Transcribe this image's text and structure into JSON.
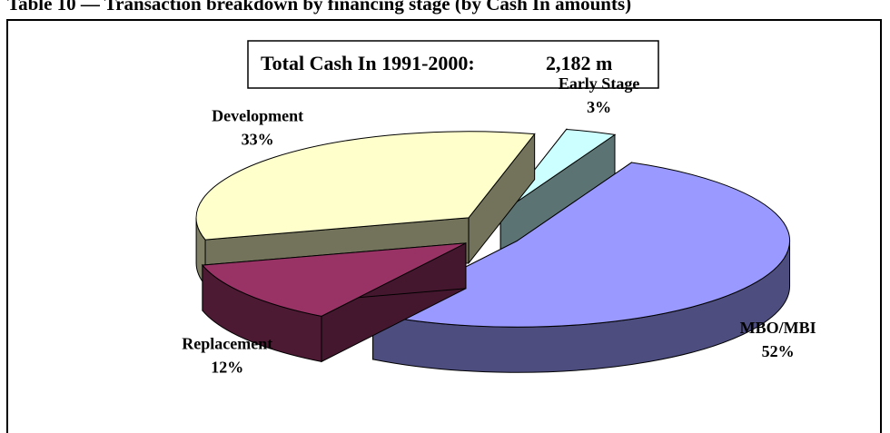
{
  "chart_data": {
    "type": "pie3d",
    "title": "Table 10 — Transaction breakdown by financing stage (by Cash In amounts)",
    "annotation": "Total Cash In 1991-2000:",
    "annotation_value": "2,182 m",
    "categories": [
      "Early Stage",
      "MBO/MBI",
      "Replacement",
      "Development"
    ],
    "values": [
      3,
      52,
      12,
      33
    ],
    "value_labels": [
      "3%",
      "52%",
      "12%",
      "33%"
    ],
    "colors": [
      "#ccffff",
      "#9999ff",
      "#993366",
      "#ffffcc"
    ]
  }
}
